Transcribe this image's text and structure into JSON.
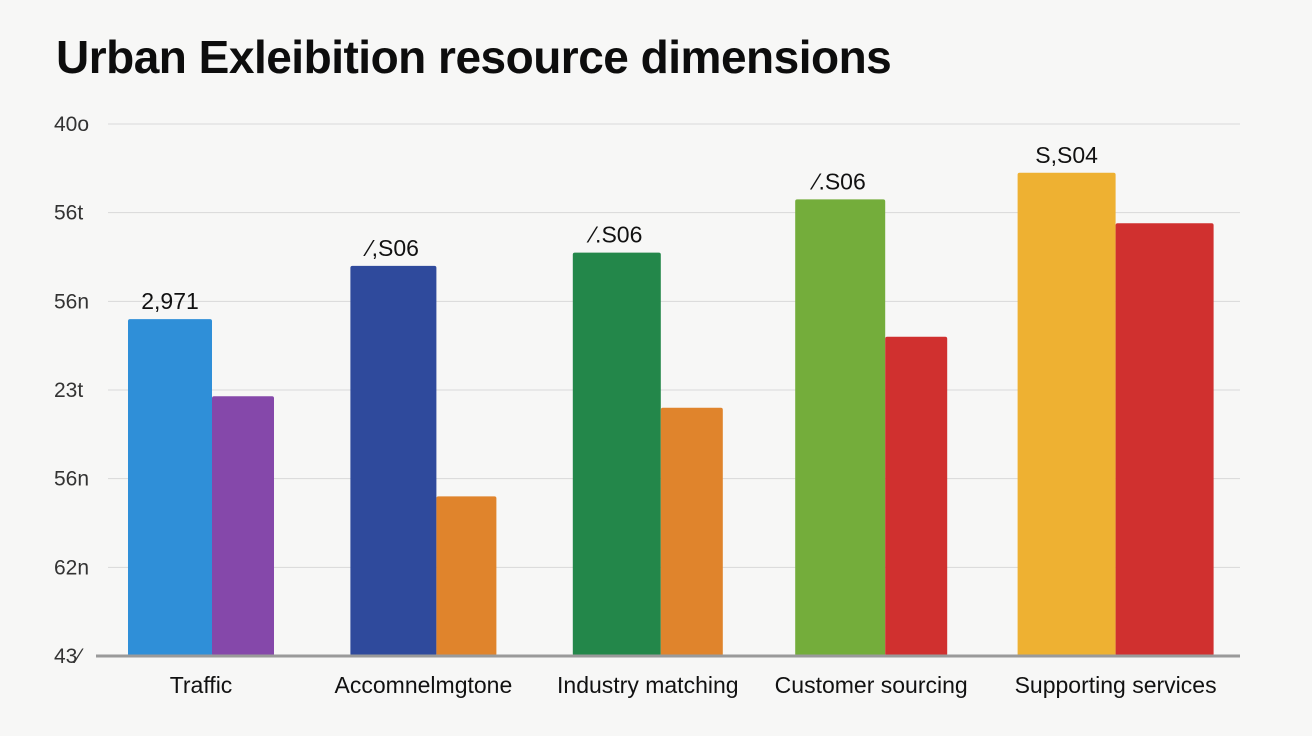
{
  "chart_data": {
    "type": "bar",
    "title": "Urban Exleibition resource dimensions",
    "xlabel": "",
    "ylabel": "",
    "ylim": [
      0,
      6
    ],
    "y_tick_labels": [
      "43⁄",
      "62n",
      "56n",
      "23t",
      "56n",
      "56t",
      "40o"
    ],
    "categories": [
      "Traffic",
      "Accomnelmgtone",
      "Industry matching",
      "Customer sourcing",
      "Supporting services"
    ],
    "series": [
      {
        "values": [
          3.8,
          4.4,
          4.55,
          5.15,
          5.45
        ],
        "colors": [
          "#2f8fd8",
          "#2f4a9c",
          "#23874a",
          "#74ad3b",
          "#eeb132"
        ]
      },
      {
        "values": [
          2.93,
          1.8,
          2.8,
          3.6,
          4.88
        ],
        "colors": [
          "#8548aa",
          "#e0842c",
          "#e0842c",
          "#d0302f",
          "#d0302f"
        ]
      }
    ],
    "data_labels": [
      "2,971",
      "⁄,S06",
      "⁄.S06",
      "⁄.S06",
      "S,S04"
    ],
    "grid": true,
    "legend": "none"
  }
}
